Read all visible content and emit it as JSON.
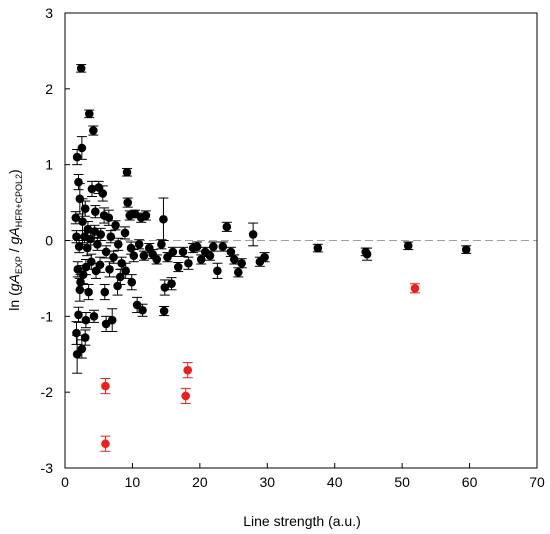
{
  "chart_data": {
    "type": "scatter",
    "title": "",
    "xlabel": "Line strength (a.u.)",
    "ylabel": {
      "prefix": "ln (",
      "g1": "g",
      "a1": "A",
      "sub1": "EXP",
      "sep": " / ",
      "g2": "g",
      "a2": "A",
      "sub2": "HFR+CPOL2",
      "suffix": ")"
    },
    "xlim": [
      0,
      70
    ],
    "ylim": [
      -3,
      3
    ],
    "xticks": [
      0,
      10,
      20,
      30,
      40,
      50,
      60,
      70
    ],
    "yticks": [
      -3,
      -2,
      -1,
      0,
      1,
      2,
      3
    ],
    "grid": false,
    "legend": "none",
    "reference_line": {
      "y": 0,
      "style": "dashed",
      "color": "#a0a0a0"
    },
    "series": [
      {
        "color": "#000000",
        "points": [
          {
            "x": 2.4,
            "y": 2.27,
            "e": 0.05
          },
          {
            "x": 3.6,
            "y": 1.67,
            "e": 0.05
          },
          {
            "x": 4.2,
            "y": 1.45,
            "e": 0.06
          },
          {
            "x": 2.5,
            "y": 1.22,
            "e": 0.15
          },
          {
            "x": 1.8,
            "y": 1.1,
            "e": 0.1
          },
          {
            "x": 2.0,
            "y": 0.77,
            "e": 0.1
          },
          {
            "x": 9.2,
            "y": 0.9,
            "e": 0.05
          },
          {
            "x": 4.0,
            "y": 0.68,
            "e": 0.1
          },
          {
            "x": 5.0,
            "y": 0.7,
            "e": 0.08
          },
          {
            "x": 5.6,
            "y": 0.62,
            "e": 0.1
          },
          {
            "x": 2.2,
            "y": 0.55,
            "e": 0.2
          },
          {
            "x": 3.0,
            "y": 0.42,
            "e": 0.1
          },
          {
            "x": 1.6,
            "y": 0.3,
            "e": 0.08
          },
          {
            "x": 2.6,
            "y": 0.25,
            "e": 0.3
          },
          {
            "x": 3.4,
            "y": 0.15,
            "e": 0.1
          },
          {
            "x": 4.5,
            "y": 0.38,
            "e": 0.08
          },
          {
            "x": 5.8,
            "y": 0.33,
            "e": 0.1
          },
          {
            "x": 6.5,
            "y": 0.3,
            "e": 0.1
          },
          {
            "x": 7.5,
            "y": 0.2,
            "e": 0.06
          },
          {
            "x": 9.3,
            "y": 0.5,
            "e": 0.06
          },
          {
            "x": 9.6,
            "y": 0.33,
            "e": 0.06
          },
          {
            "x": 10.4,
            "y": 0.35,
            "e": 0.05
          },
          {
            "x": 11.3,
            "y": 0.3,
            "e": 0.06
          },
          {
            "x": 12.0,
            "y": 0.33,
            "e": 0.06
          },
          {
            "x": 14.6,
            "y": 0.28,
            "e": 0.28
          },
          {
            "x": 13.0,
            "y": -0.18,
            "e": 0.06
          },
          {
            "x": 1.7,
            "y": 0.05,
            "e": 0.08
          },
          {
            "x": 2.1,
            "y": -0.08,
            "e": 0.08
          },
          {
            "x": 2.9,
            "y": 0.05,
            "e": 0.08
          },
          {
            "x": 3.3,
            "y": -0.1,
            "e": 0.1
          },
          {
            "x": 3.8,
            "y": 0.02,
            "e": 0.08
          },
          {
            "x": 4.4,
            "y": 0.12,
            "e": 0.08
          },
          {
            "x": 4.8,
            "y": -0.05,
            "e": 0.08
          },
          {
            "x": 5.3,
            "y": 0.08,
            "e": 0.08
          },
          {
            "x": 6.1,
            "y": -0.15,
            "e": 0.08
          },
          {
            "x": 6.8,
            "y": 0.05,
            "e": 0.08
          },
          {
            "x": 7.2,
            "y": -0.22,
            "e": 0.08
          },
          {
            "x": 7.9,
            "y": -0.05,
            "e": 0.08
          },
          {
            "x": 8.4,
            "y": -0.3,
            "e": 0.08
          },
          {
            "x": 8.9,
            "y": 0.1,
            "e": 0.08
          },
          {
            "x": 9.8,
            "y": -0.1,
            "e": 0.08
          },
          {
            "x": 10.2,
            "y": -0.2,
            "e": 0.08
          },
          {
            "x": 11.0,
            "y": -0.05,
            "e": 0.06
          },
          {
            "x": 11.7,
            "y": -0.2,
            "e": 0.06
          },
          {
            "x": 12.5,
            "y": -0.1,
            "e": 0.06
          },
          {
            "x": 13.6,
            "y": -0.25,
            "e": 0.06
          },
          {
            "x": 14.3,
            "y": -0.05,
            "e": 0.06
          },
          {
            "x": 15.2,
            "y": -0.22,
            "e": 0.06
          },
          {
            "x": 16.0,
            "y": -0.15,
            "e": 0.06
          },
          {
            "x": 16.8,
            "y": -0.35,
            "e": 0.06
          },
          {
            "x": 17.5,
            "y": -0.15,
            "e": 0.06
          },
          {
            "x": 18.3,
            "y": -0.3,
            "e": 0.08
          },
          {
            "x": 19.0,
            "y": -0.1,
            "e": 0.06
          },
          {
            "x": 19.6,
            "y": -0.08,
            "e": 0.06
          },
          {
            "x": 20.2,
            "y": -0.25,
            "e": 0.06
          },
          {
            "x": 20.8,
            "y": -0.15,
            "e": 0.06
          },
          {
            "x": 21.5,
            "y": -0.2,
            "e": 0.06
          },
          {
            "x": 22.0,
            "y": -0.08,
            "e": 0.06
          },
          {
            "x": 22.6,
            "y": -0.4,
            "e": 0.1
          },
          {
            "x": 23.4,
            "y": -0.08,
            "e": 0.06
          },
          {
            "x": 24.0,
            "y": 0.18,
            "e": 0.06
          },
          {
            "x": 24.6,
            "y": -0.15,
            "e": 0.06
          },
          {
            "x": 25.1,
            "y": -0.25,
            "e": 0.06
          },
          {
            "x": 25.7,
            "y": -0.42,
            "e": 0.06
          },
          {
            "x": 26.2,
            "y": -0.3,
            "e": 0.06
          },
          {
            "x": 27.9,
            "y": 0.08,
            "e": 0.15
          },
          {
            "x": 28.9,
            "y": -0.28,
            "e": 0.06
          },
          {
            "x": 29.6,
            "y": -0.22,
            "e": 0.06
          },
          {
            "x": 37.5,
            "y": -0.1,
            "e": 0.05
          },
          {
            "x": 44.6,
            "y": -0.15,
            "e": 0.05
          },
          {
            "x": 44.8,
            "y": -0.18,
            "e": 0.08
          },
          {
            "x": 50.9,
            "y": -0.07,
            "e": 0.05
          },
          {
            "x": 59.5,
            "y": -0.12,
            "e": 0.05
          },
          {
            "x": 1.9,
            "y": -0.38,
            "e": 0.1
          },
          {
            "x": 2.3,
            "y": -0.55,
            "e": 0.1
          },
          {
            "x": 2.7,
            "y": -0.45,
            "e": 0.12
          },
          {
            "x": 3.1,
            "y": -0.35,
            "e": 0.1
          },
          {
            "x": 3.9,
            "y": -0.28,
            "e": 0.1
          },
          {
            "x": 4.6,
            "y": -0.4,
            "e": 0.1
          },
          {
            "x": 5.2,
            "y": -0.32,
            "e": 0.1
          },
          {
            "x": 5.9,
            "y": -0.68,
            "e": 0.1
          },
          {
            "x": 6.6,
            "y": -0.38,
            "e": 0.1
          },
          {
            "x": 7.8,
            "y": -0.6,
            "e": 0.12
          },
          {
            "x": 8.2,
            "y": -0.48,
            "e": 0.1
          },
          {
            "x": 9.0,
            "y": -0.4,
            "e": 0.1
          },
          {
            "x": 9.9,
            "y": -0.55,
            "e": 0.1
          },
          {
            "x": 10.7,
            "y": -0.85,
            "e": 0.1
          },
          {
            "x": 11.5,
            "y": -0.92,
            "e": 0.08
          },
          {
            "x": 14.8,
            "y": -0.62,
            "e": 0.1
          },
          {
            "x": 14.7,
            "y": -0.93,
            "e": 0.06
          },
          {
            "x": 15.8,
            "y": -0.57,
            "e": 0.08
          },
          {
            "x": 2.2,
            "y": -0.65,
            "e": 0.15
          },
          {
            "x": 3.5,
            "y": -0.68,
            "e": 0.1
          },
          {
            "x": 2.0,
            "y": -0.98,
            "e": 0.1
          },
          {
            "x": 4.3,
            "y": -1.0,
            "e": 0.08
          },
          {
            "x": 3.1,
            "y": -1.05,
            "e": 0.1
          },
          {
            "x": 6.1,
            "y": -1.1,
            "e": 0.1
          },
          {
            "x": 7.0,
            "y": -1.05,
            "e": 0.15
          },
          {
            "x": 1.7,
            "y": -1.22,
            "e": 0.15
          },
          {
            "x": 3.0,
            "y": -1.28,
            "e": 0.1
          },
          {
            "x": 2.5,
            "y": -1.43,
            "e": 0.12
          },
          {
            "x": 1.8,
            "y": -1.5,
            "e": 0.25
          }
        ]
      },
      {
        "color": "#e8201e",
        "points": [
          {
            "x": 6.0,
            "y": -1.92,
            "e": 0.1
          },
          {
            "x": 6.0,
            "y": -2.68,
            "e": 0.1
          },
          {
            "x": 17.9,
            "y": -2.05,
            "e": 0.1
          },
          {
            "x": 18.2,
            "y": -1.71,
            "e": 0.1
          },
          {
            "x": 51.9,
            "y": -0.63,
            "e": 0.06
          }
        ]
      }
    ]
  }
}
